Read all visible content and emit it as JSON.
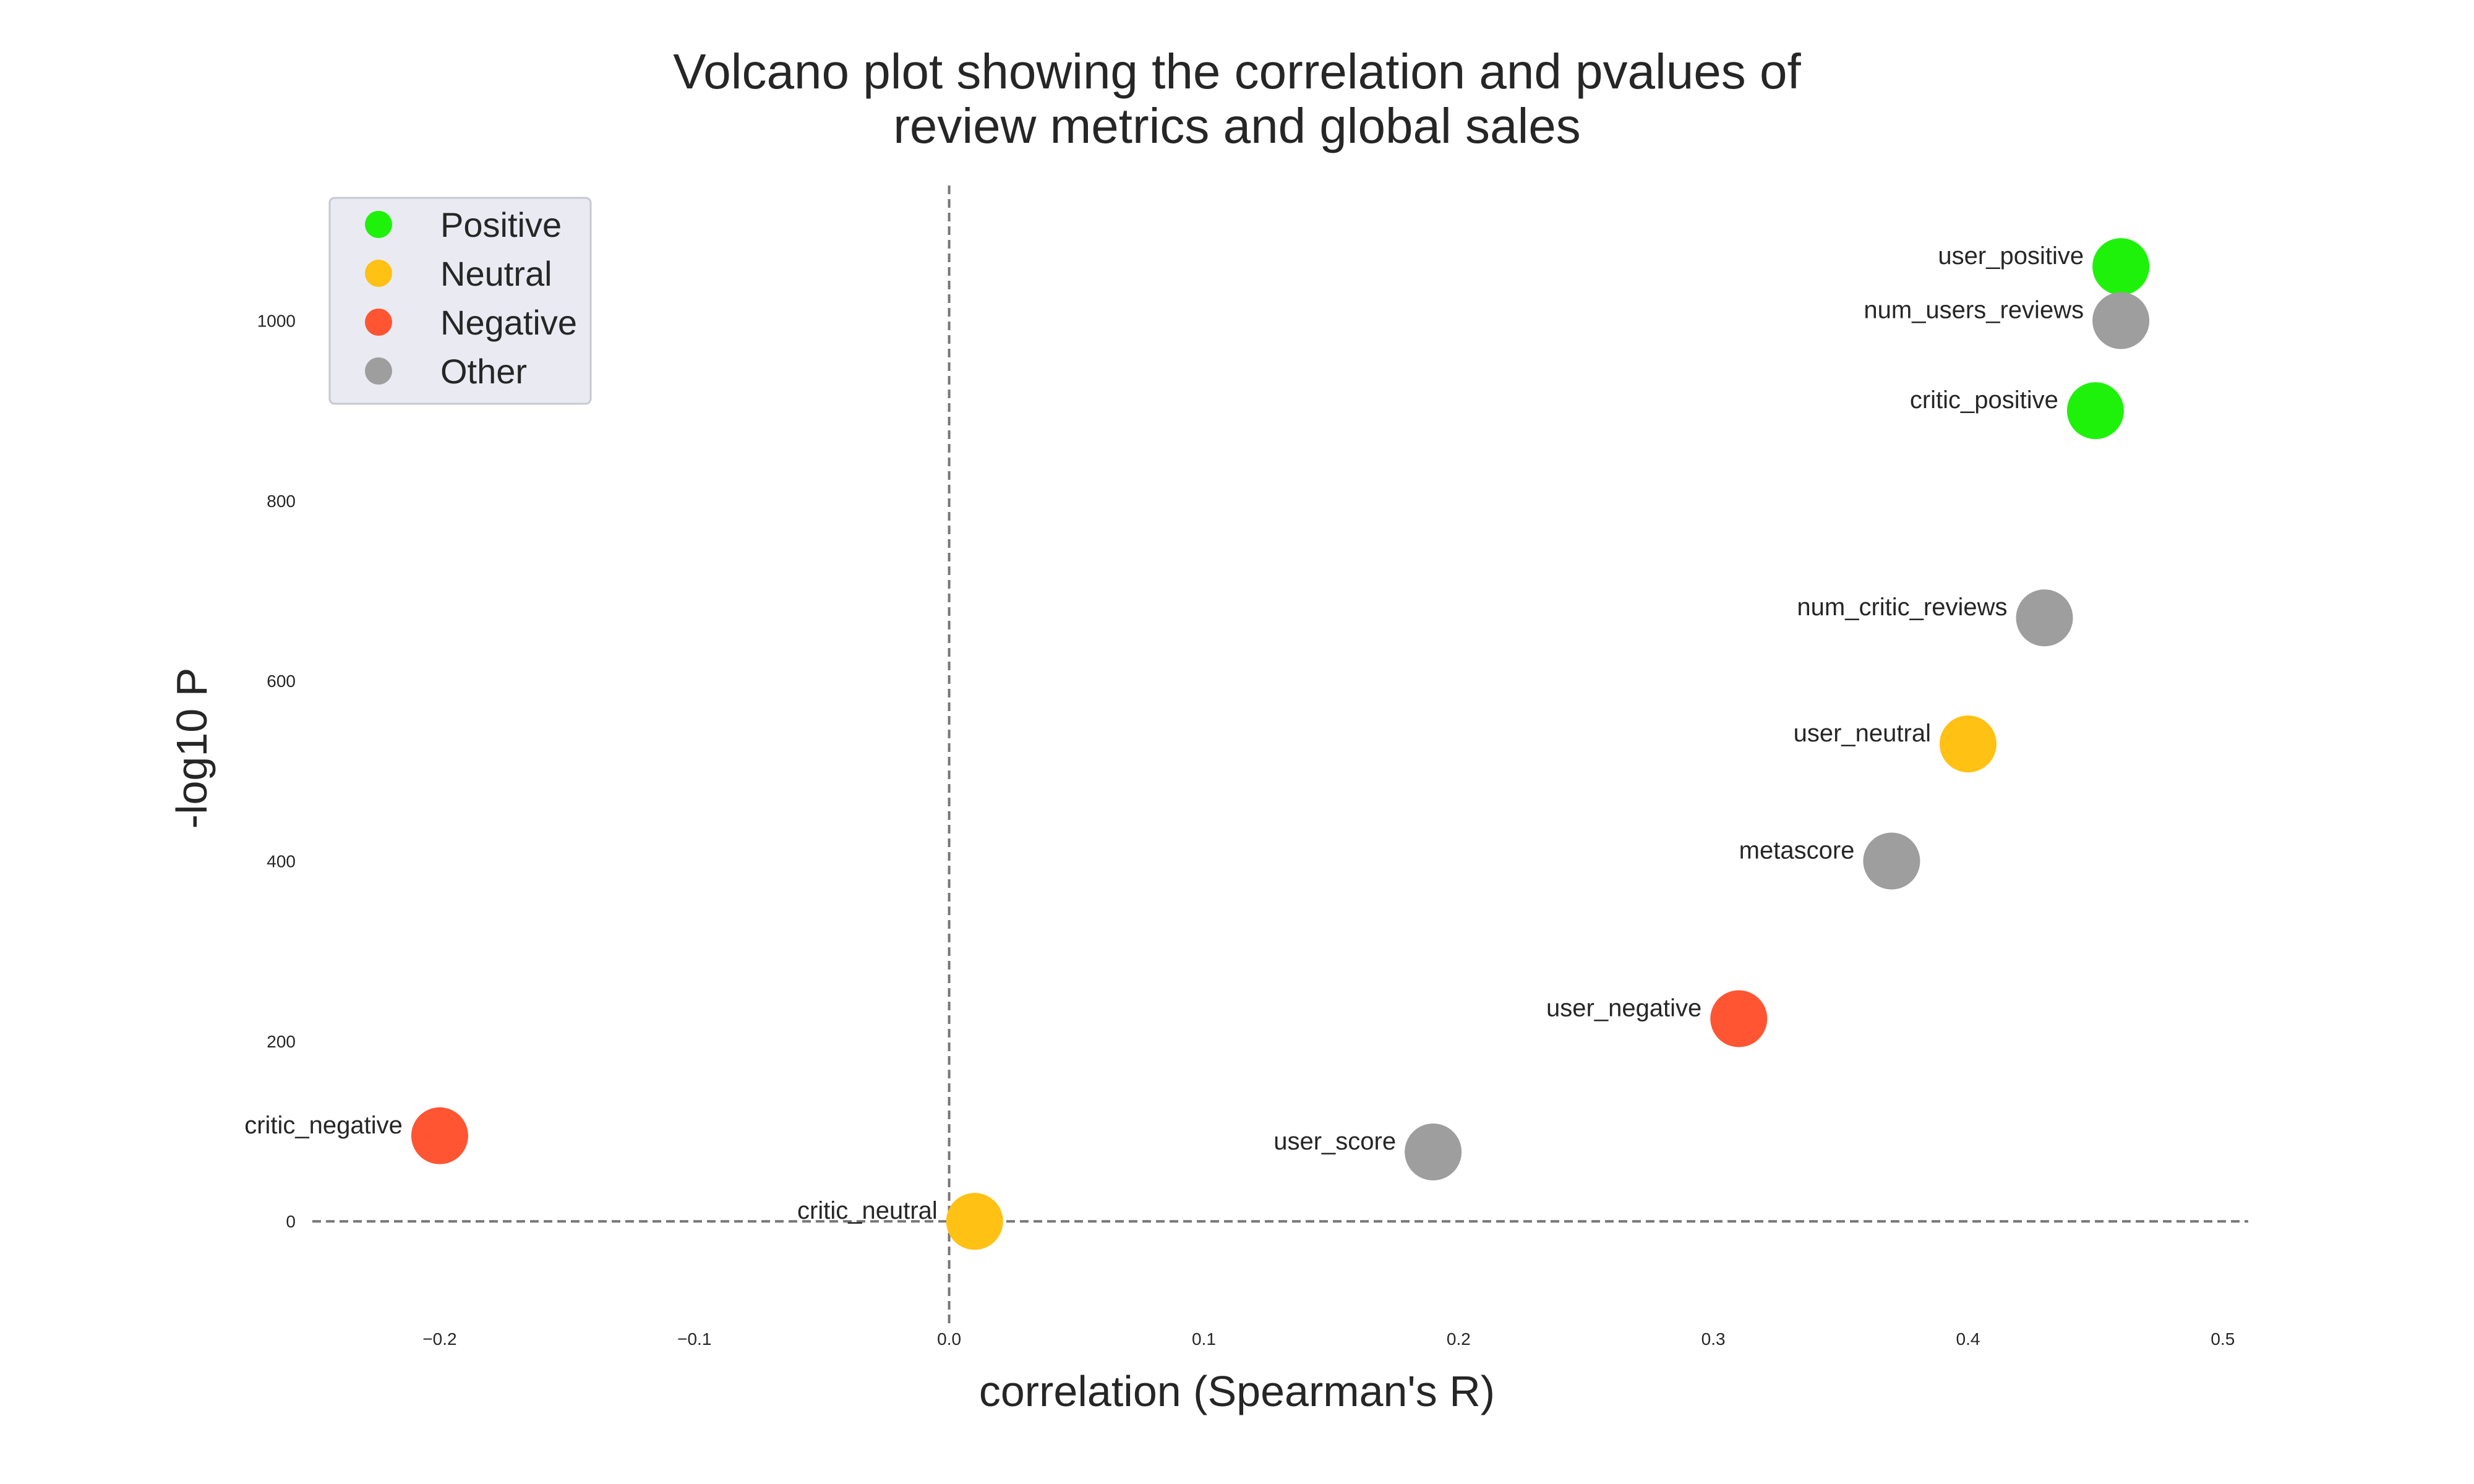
{
  "chart_data": {
    "type": "scatter",
    "title_lines": [
      "Volcano plot showing the correlation and pvalues of",
      "review metrics and global sales"
    ],
    "xlabel": "correlation (Spearman's R)",
    "ylabel": "-log10 P",
    "xlim": [
      -0.25,
      0.51
    ],
    "ylim": [
      -120,
      1150
    ],
    "x_ticks": [
      -0.2,
      -0.1,
      0.0,
      0.1,
      0.2,
      0.3,
      0.4,
      0.5
    ],
    "x_tick_labels": [
      "−0.2",
      "−0.1",
      "0.0",
      "0.1",
      "0.2",
      "0.3",
      "0.4",
      "0.5"
    ],
    "y_ticks": [
      0,
      200,
      400,
      600,
      800,
      1000
    ],
    "y_tick_labels": [
      "0",
      "200",
      "400",
      "600",
      "800",
      "1000"
    ],
    "reference_lines": {
      "x": 0,
      "y": 0,
      "style": "dashed"
    },
    "grid": false,
    "legend": {
      "placement": "top-left",
      "entries": [
        {
          "label": "Positive",
          "color": "#1ef20a"
        },
        {
          "label": "Neutral",
          "color": "#ffc114"
        },
        {
          "label": "Negative",
          "color": "#ff5533"
        },
        {
          "label": "Other",
          "color": "#9e9e9e"
        }
      ]
    },
    "points": [
      {
        "label": "user_positive",
        "x": 0.46,
        "y": 1060,
        "category": "Positive"
      },
      {
        "label": "num_users_reviews",
        "x": 0.46,
        "y": 1000,
        "category": "Other"
      },
      {
        "label": "critic_positive",
        "x": 0.45,
        "y": 900,
        "category": "Positive"
      },
      {
        "label": "num_critic_reviews",
        "x": 0.43,
        "y": 670,
        "category": "Other"
      },
      {
        "label": "user_neutral",
        "x": 0.4,
        "y": 530,
        "category": "Neutral"
      },
      {
        "label": "metascore",
        "x": 0.37,
        "y": 400,
        "category": "Other"
      },
      {
        "label": "user_negative",
        "x": 0.31,
        "y": 225,
        "category": "Negative"
      },
      {
        "label": "user_score",
        "x": 0.19,
        "y": 77,
        "category": "Other"
      },
      {
        "label": "critic_negative",
        "x": -0.2,
        "y": 95,
        "category": "Negative"
      },
      {
        "label": "critic_neutral",
        "x": 0.01,
        "y": 0,
        "category": "Neutral"
      }
    ]
  },
  "colors": {
    "Positive": "#1ef20a",
    "Neutral": "#ffc114",
    "Negative": "#ff5533",
    "Other": "#9e9e9e",
    "reference_line": "#777777",
    "legend_bg": "#eaeaf2",
    "legend_border": "#c8c8d0"
  }
}
